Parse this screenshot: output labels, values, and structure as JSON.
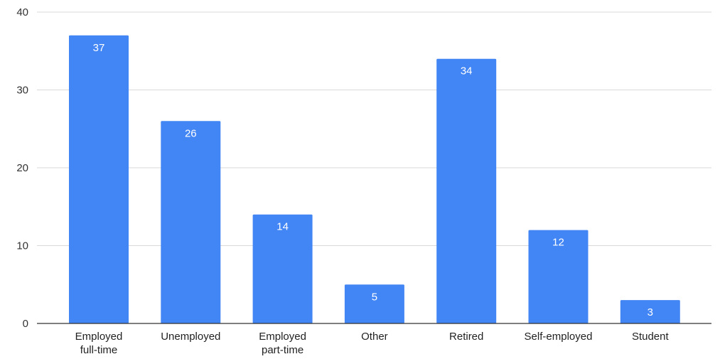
{
  "chart_data": {
    "type": "bar",
    "title": "",
    "xlabel": "",
    "ylabel": "",
    "categories": [
      [
        "Employed",
        "full-time"
      ],
      [
        "Unemployed"
      ],
      [
        "Employed",
        "part-time"
      ],
      [
        "Other"
      ],
      [
        "Retired"
      ],
      [
        "Self-employed"
      ],
      [
        "Student"
      ]
    ],
    "values": [
      37,
      26,
      14,
      5,
      34,
      12,
      3
    ],
    "ylim": [
      0,
      40
    ],
    "yticks": [
      0,
      10,
      20,
      30,
      40
    ],
    "grid": true,
    "legend": "none",
    "data_labels": true,
    "colors": {
      "bar": "#4285f4",
      "grid": "#d9d9d9",
      "axis": "#333333",
      "data_label": "#ffffff"
    }
  }
}
